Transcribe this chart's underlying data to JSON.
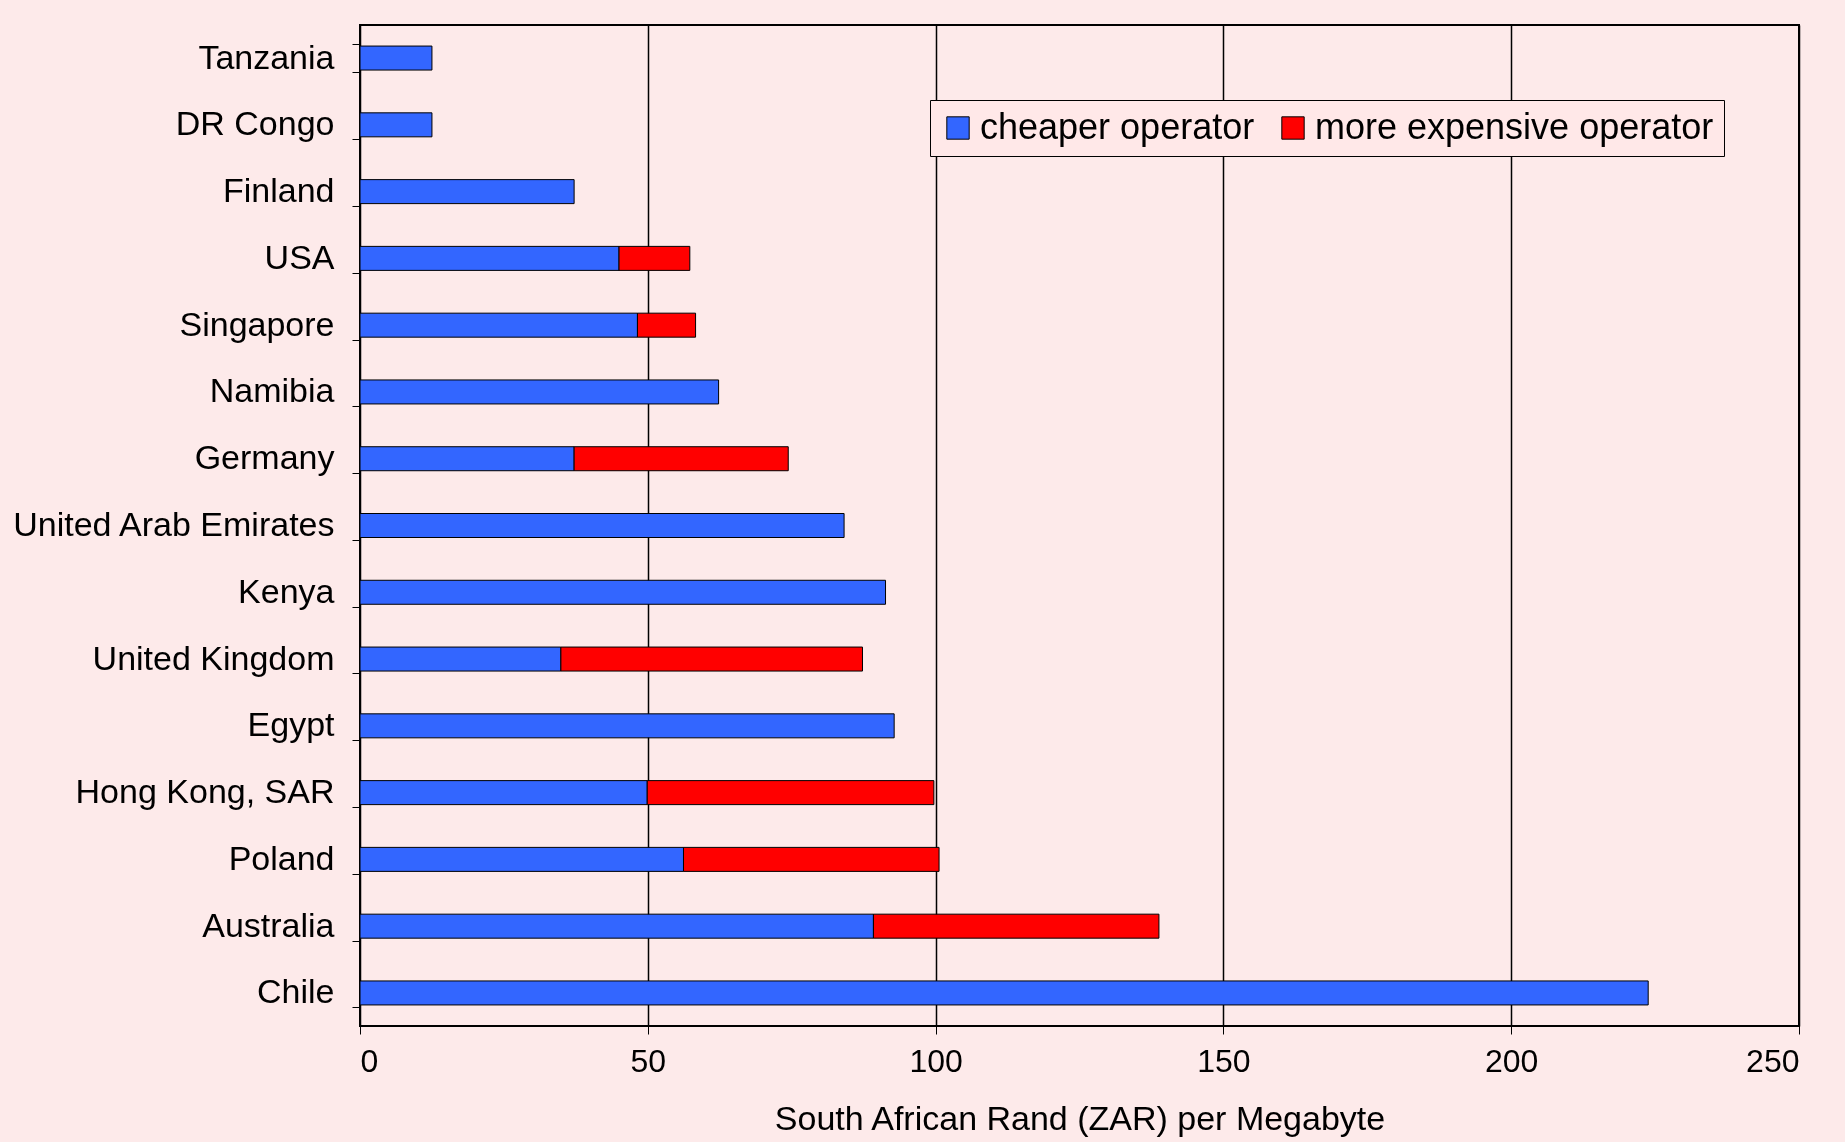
{
  "chart_data": {
    "type": "bar",
    "orientation": "horizontal",
    "stacked": true,
    "xlabel": "South African Rand (ZAR) per Megabyte",
    "categories": [
      "Tanzania",
      "DR Congo",
      "Finland",
      "USA",
      "Singapore",
      "Namibia",
      "Germany",
      "United Arab Emirates",
      "Kenya",
      "United Kingdom",
      "Egypt",
      "Hong Kong, SAR",
      "Poland",
      "Australia",
      "Chile"
    ],
    "series": [
      {
        "name": "cheaper operator",
        "color": "#3366ff",
        "values": [
          12.5,
          12.5,
          37.2,
          45,
          48.2,
          62.3,
          37.2,
          84.1,
          91.3,
          34.9,
          92.8,
          49.9,
          56.2,
          89.2,
          223.8
        ]
      },
      {
        "name": "more expensive operator",
        "color": "#ff0000",
        "values": [
          null,
          null,
          null,
          12.3,
          10.1,
          null,
          37.2,
          null,
          null,
          52.4,
          null,
          49.8,
          44.4,
          49.6,
          null
        ]
      }
    ],
    "xlim": [
      0,
      250
    ],
    "xticks": [
      0,
      50,
      100,
      150,
      200,
      250
    ],
    "grid": "x",
    "legend": "top right"
  }
}
